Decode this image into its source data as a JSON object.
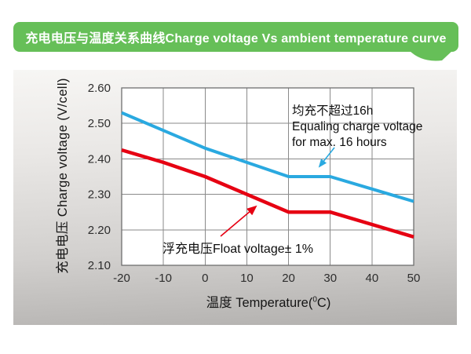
{
  "banner": {
    "text": "充电电压与温度关系曲线Charge voltage Vs ambient temperature curve",
    "bg_color": "#66bf58"
  },
  "axis_titles": {
    "y": "充电电压 Charge voltage (V/cell)",
    "x_prefix": "温度 Temperature(",
    "x_sup": "0",
    "x_suffix": "C)"
  },
  "annotations": {
    "equalize": {
      "line1": "均充不超过16h",
      "line2": "Equaling charge voltage",
      "line3": "for max. 16 hours"
    },
    "float": {
      "text": "浮充电压Float voltage± 1%"
    }
  },
  "chart_data": {
    "type": "line",
    "title": "充电电压与温度关系曲线Charge voltage Vs ambient temperature curve",
    "xlabel": "温度 Temperature(0C)",
    "ylabel": "充电电压 Charge voltage (V/cell)",
    "x": [
      -20,
      -10,
      0,
      10,
      20,
      30,
      40,
      50
    ],
    "series": [
      {
        "name": "equalize-charge-voltage",
        "label": "均充不超过16h Equaling charge voltage for max. 16 hours",
        "color": "#2aa9e0",
        "values": [
          2.53,
          2.48,
          2.43,
          2.39,
          2.35,
          2.35,
          2.315,
          2.28
        ]
      },
      {
        "name": "float-charge-voltage",
        "label": "浮充电压Float voltage± 1%",
        "color": "#e60012",
        "values": [
          2.425,
          2.39,
          2.35,
          2.3,
          2.25,
          2.25,
          2.215,
          2.18
        ]
      }
    ],
    "xlim": [
      -20,
      50
    ],
    "ylim": [
      2.1,
      2.6
    ],
    "xticks": [
      -20,
      -10,
      0,
      10,
      20,
      30,
      40,
      50
    ],
    "ytick_labels": [
      "2.60",
      "2.50",
      "2.40",
      "2.30",
      "2.20",
      "2.10"
    ],
    "grid": true,
    "grid_color": "#8a8a8a",
    "border_color": "#6f6f6f",
    "plot_bg": "#ffffff",
    "legend_position": "none"
  }
}
